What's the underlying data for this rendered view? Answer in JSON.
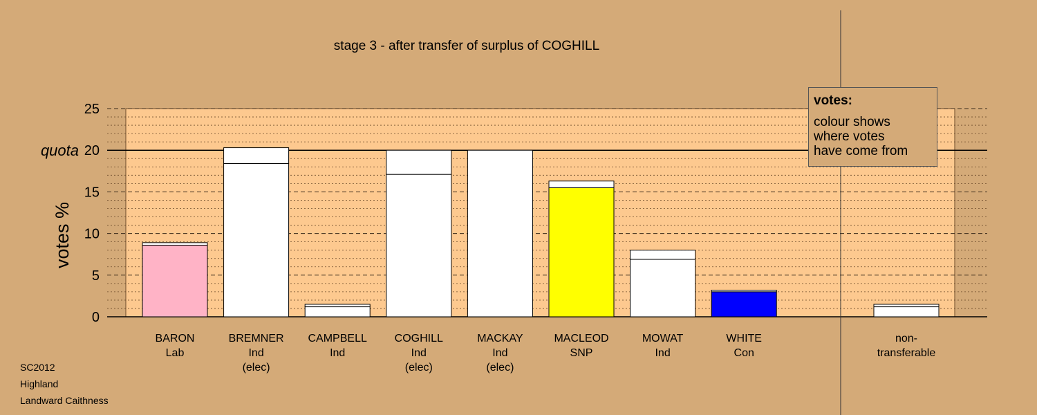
{
  "chart_data": {
    "type": "bar",
    "title": "stage 3 - after transfer of surplus of COGHILL",
    "ylabel": "votes %",
    "ylim": [
      0,
      25
    ],
    "yticks": [
      0,
      5,
      10,
      15,
      20,
      25
    ],
    "quota": {
      "label": "quota",
      "value": 20
    },
    "grid": "dashed major every 5, dotted minor every 1",
    "candidates": [
      {
        "name": "BARON",
        "lines": [
          "Lab"
        ],
        "fill": "#ffb3c6",
        "segments": [
          8.6,
          0.3
        ]
      },
      {
        "name": "BREMNER",
        "lines": [
          "Ind",
          "(elec)"
        ],
        "fill": "#ffffff",
        "segments": [
          18.4,
          1.9
        ]
      },
      {
        "name": "CAMPBELL",
        "lines": [
          "Ind"
        ],
        "fill": "#ffffff",
        "segments": [
          1.2,
          0.3
        ]
      },
      {
        "name": "COGHILL",
        "lines": [
          "Ind",
          "(elec)"
        ],
        "fill": "#ffffff",
        "segments": [
          17.1,
          2.9
        ]
      },
      {
        "name": "MACKAY",
        "lines": [
          "Ind",
          "(elec)"
        ],
        "fill": "#ffffff",
        "segments": [
          20.0
        ]
      },
      {
        "name": "MACLEOD",
        "lines": [
          "SNP"
        ],
        "fill": "#ffff00",
        "segments": [
          15.5,
          0.8
        ]
      },
      {
        "name": "MOWAT",
        "lines": [
          "Ind"
        ],
        "fill": "#ffffff",
        "segments": [
          6.9,
          1.1
        ]
      },
      {
        "name": "WHITE",
        "lines": [
          "Con"
        ],
        "fill": "#0000ff",
        "segments": [
          3.0,
          0.2
        ]
      }
    ],
    "nontransferable": {
      "lines": [
        "non-",
        "transferable"
      ],
      "fill": "#ffffff",
      "segments": [
        1.2,
        0.3
      ]
    }
  },
  "legend": {
    "title": "votes:",
    "body": "colour shows\nwhere votes\nhave come from"
  },
  "footer": {
    "line1": "SC2012",
    "line2": "Highland",
    "line3": "Landward Caithness"
  },
  "colors": {
    "background": "#d4aa78",
    "plot_area": "#fdc98f"
  }
}
